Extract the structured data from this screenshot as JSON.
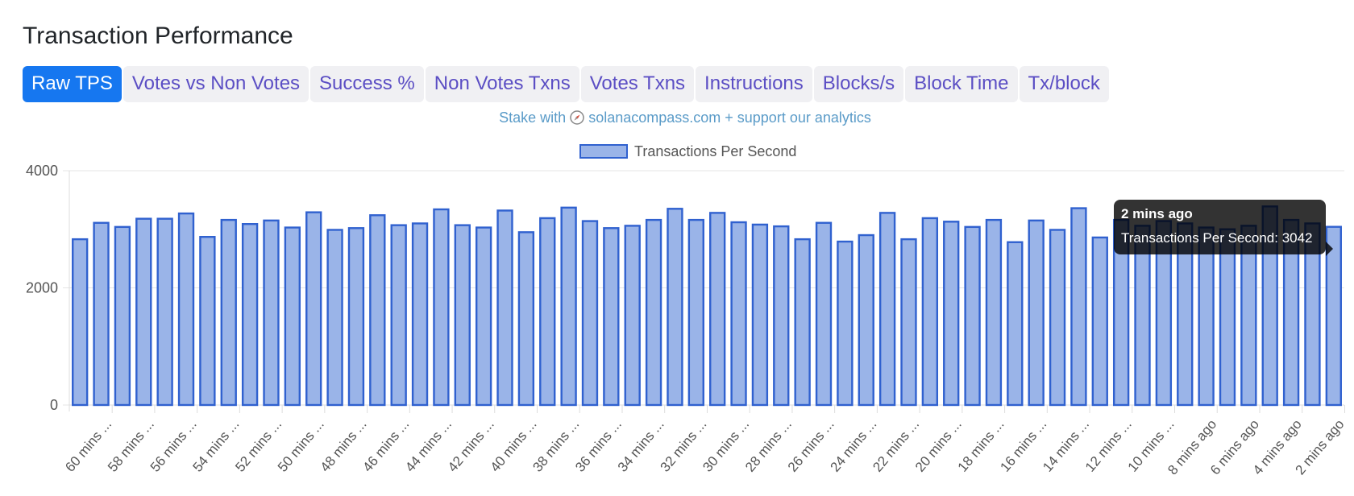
{
  "page": {
    "title": "Transaction Performance",
    "tabs": [
      {
        "label": "Raw TPS",
        "active": true
      },
      {
        "label": "Votes vs Non Votes",
        "active": false
      },
      {
        "label": "Success %",
        "active": false
      },
      {
        "label": "Non Votes Txns",
        "active": false
      },
      {
        "label": "Votes Txns",
        "active": false
      },
      {
        "label": "Instructions",
        "active": false
      },
      {
        "label": "Blocks/s",
        "active": false
      },
      {
        "label": "Block Time",
        "active": false
      },
      {
        "label": "Tx/block",
        "active": false
      }
    ],
    "promo": {
      "prefix": "Stake with",
      "icon": "compass-icon",
      "link": "solanacompass.com + support our analytics"
    }
  },
  "tooltip": {
    "title": "2 mins ago",
    "body": "Transactions Per Second: 3042"
  },
  "colors": {
    "accent": "#1677f0",
    "tab_text": "#5b4ec4",
    "bar_fill": "#9ab4e8",
    "bar_border": "#3061cf",
    "promo_text": "#5a9bc8"
  },
  "chart_data": {
    "type": "bar",
    "legend": [
      "Transactions Per Second"
    ],
    "legend_position": "top",
    "ylim": [
      0,
      4000
    ],
    "yticks": [
      0,
      2000,
      4000
    ],
    "grid": true,
    "tick_labels": [
      "60 mins ...",
      "58 mins ...",
      "56 mins ...",
      "54 mins ...",
      "52 mins ...",
      "50 mins ...",
      "48 mins ...",
      "46 mins ...",
      "44 mins ...",
      "42 mins ...",
      "40 mins ...",
      "38 mins ...",
      "36 mins ...",
      "34 mins ...",
      "32 mins ...",
      "30 mins ...",
      "28 mins ...",
      "26 mins ...",
      "24 mins ...",
      "22 mins ...",
      "20 mins ...",
      "18 mins ...",
      "16 mins ...",
      "14 mins ...",
      "12 mins ...",
      "10 mins ...",
      "8 mins ago",
      "6 mins ago",
      "4 mins ago",
      "2 mins ago"
    ],
    "series": [
      {
        "name": "Transactions Per Second",
        "values": [
          2830,
          3110,
          3040,
          3180,
          3180,
          3270,
          2870,
          3160,
          3090,
          3150,
          3030,
          3290,
          2990,
          3020,
          3240,
          3070,
          3100,
          3340,
          3070,
          3030,
          3320,
          2950,
          3190,
          3370,
          3140,
          3020,
          3060,
          3160,
          3350,
          3160,
          3280,
          3120,
          3080,
          3050,
          2830,
          3110,
          2790,
          2900,
          3280,
          2830,
          3190,
          3130,
          3040,
          3160,
          2780,
          3150,
          2990,
          3360,
          2860,
          3160,
          3060,
          3140,
          3100,
          3030,
          3000,
          3060,
          3390,
          3160,
          3100,
          3042
        ]
      }
    ]
  }
}
